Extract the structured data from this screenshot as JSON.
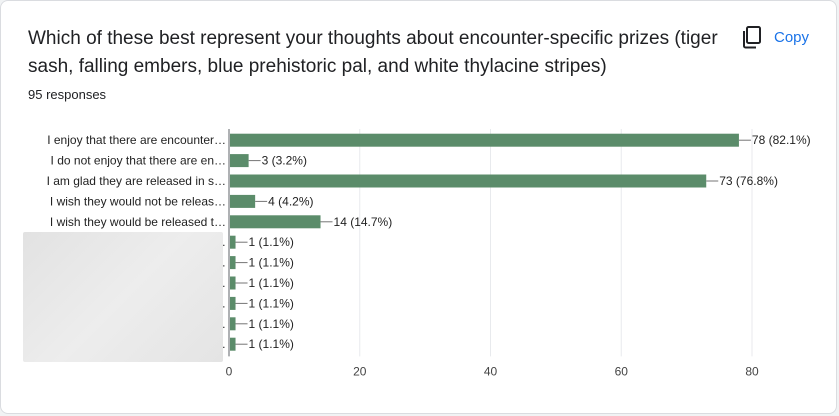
{
  "card": {
    "title": "Which of these best represent your thoughts about encounter-specific prizes (tiger sash, falling embers, blue prehistoric pal, and white thylacine stripes)",
    "responses": "95 responses",
    "copy_label": "Copy",
    "copy_icon": "copy-icon"
  },
  "colors": {
    "bar": "#5b8c6a",
    "accent": "#1a73e8",
    "grid": "#e8eaed"
  },
  "chart_data": {
    "type": "bar",
    "orientation": "horizontal",
    "categories": [
      "I enjoy that there are encounter…",
      "I do not enjoy that there are en…",
      "I am glad they are released in s…",
      "I wish they would not be releas…",
      "I wish they would be released t…",
      "…",
      "…",
      "…",
      "…",
      "…",
      "…"
    ],
    "values": [
      78,
      3,
      73,
      4,
      14,
      1,
      1,
      1,
      1,
      1,
      1
    ],
    "value_labels": [
      "78 (82.1%)",
      "3 (3.2%)",
      "73 (76.8%)",
      "4 (4.2%)",
      "14 (14.7%)",
      "1 (1.1%)",
      "1 (1.1%)",
      "1 (1.1%)",
      "1 (1.1%)",
      "1 (1.1%)",
      "1 (1.1%)"
    ],
    "xlim": [
      0,
      80
    ],
    "xticks": [
      0,
      20,
      40,
      60,
      80
    ],
    "grid": true
  }
}
